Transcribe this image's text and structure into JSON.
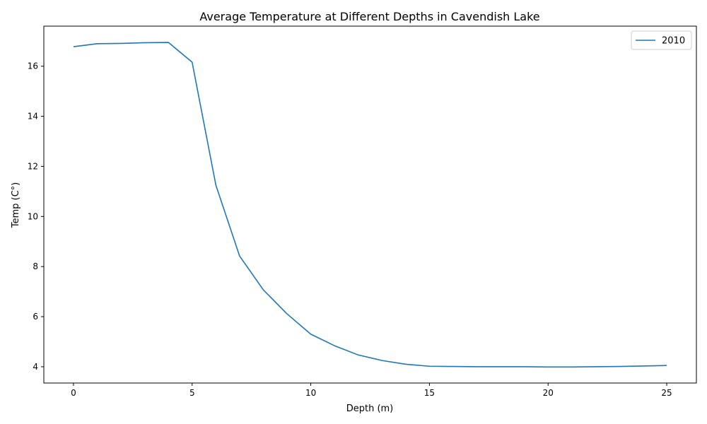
{
  "chart_data": {
    "type": "line",
    "title": "Average Temperature at Different Depths in Cavendish Lake",
    "xlabel": "Depth (m)",
    "ylabel": "Temp (C°)",
    "xlim": [
      -1.25,
      26.25
    ],
    "ylim": [
      3.35,
      17.6
    ],
    "xticks": [
      0,
      5,
      10,
      15,
      20,
      25
    ],
    "yticks": [
      4,
      6,
      8,
      10,
      12,
      14,
      16
    ],
    "grid": false,
    "legend_position": "top-right",
    "series": [
      {
        "name": "2010",
        "color": "#1f77b4",
        "x": [
          0,
          1,
          2,
          3,
          4,
          5,
          6,
          7,
          8,
          9,
          10,
          11,
          12,
          13,
          14,
          15,
          16,
          17,
          18,
          19,
          20,
          21,
          22,
          23,
          24,
          25
        ],
        "y": [
          16.78,
          16.9,
          16.91,
          16.94,
          16.95,
          16.16,
          11.25,
          8.42,
          7.07,
          6.11,
          5.3,
          4.84,
          4.47,
          4.25,
          4.1,
          4.02,
          4.01,
          4.0,
          4.0,
          4.0,
          3.99,
          3.99,
          4.0,
          4.01,
          4.03,
          4.05
        ]
      }
    ]
  }
}
